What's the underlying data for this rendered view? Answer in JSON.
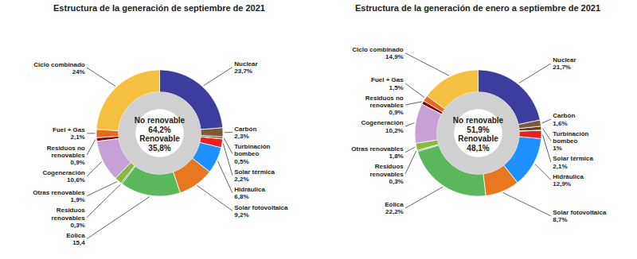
{
  "chart_data": [
    {
      "type": "donut",
      "title": "Estructura de la generación de septiembre de 2021",
      "annotations": [
        "No renovable",
        "64,2%",
        "Renovable",
        "35,8%"
      ],
      "categories": [
        "Nuclear\n23,7%",
        "Carbón\n2,3%",
        "Turbinación\nbombeo\n0,5%",
        null,
        "Solar térmica\n2,2%",
        "Hidráulica\n6,8%",
        "Solar fotovoltaica\n9,2%",
        "Eólica\n15,4",
        "Residuos\nrenovables\n0,3%",
        "Otras renovables\n1,9%",
        "Cogeneración\n10,6%",
        "Residuos no\nrenovables\n0,9%",
        "Fuel + Gas\n2,1%",
        "Ciclo combinado\n24%"
      ],
      "values": [
        23.7,
        2.3,
        0.5,
        0.05,
        2.2,
        6.8,
        9.2,
        15.4,
        0.3,
        1.9,
        10.6,
        0.9,
        2.1,
        24.0
      ],
      "colors": [
        "#3d3d9e",
        "#7a5c3a",
        "#6b3a1f",
        "#333333",
        "#e82020",
        "#1e90ff",
        "#e87820",
        "#5cb85c",
        "#2e7d32",
        "#8db840",
        "#c8a0d8",
        "#8b0000",
        "#e86820",
        "#f5c040"
      ]
    },
    {
      "type": "donut",
      "title": "Estructura de la generación de enero a septiembre de 2021",
      "annotations": [
        "No renovable",
        "51,9%",
        "Renovable",
        "48,1%"
      ],
      "categories": [
        "Nuclear\n21,7%",
        "Carbón\n1,6%",
        "Turbinación\nbombeo\n1%",
        null,
        "Solar térmica\n2,1%",
        "Hidráulica\n12,9%",
        "Solar fotovoltaica\n8,7%",
        "Eólica\n22,2%",
        "Residuos\nrenovables\n0,3%",
        "Otras renovables\n1,8%",
        "Cogeneración\n10,2%",
        "Residuos no\nrenovables\n0,9%",
        "Fuel + Gas\n1,5%",
        "Ciclo combinado\n14,9%"
      ],
      "values": [
        21.7,
        1.6,
        1.0,
        0.05,
        2.1,
        12.9,
        8.7,
        22.2,
        0.3,
        1.8,
        10.2,
        0.9,
        1.5,
        14.9
      ],
      "colors": [
        "#3d3d9e",
        "#7a5c3a",
        "#6b3a1f",
        "#333333",
        "#e82020",
        "#1e90ff",
        "#e87820",
        "#5cb85c",
        "#2e7d32",
        "#8db840",
        "#c8a0d8",
        "#8b0000",
        "#e86820",
        "#f5c040"
      ]
    }
  ]
}
